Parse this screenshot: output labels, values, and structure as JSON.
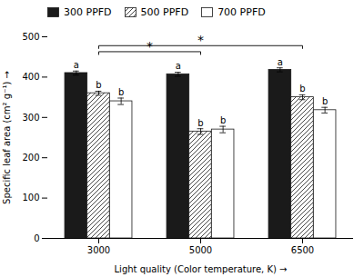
{
  "chart_data": {
    "type": "bar",
    "xlabel": "Light quality (Color temperature, K)",
    "ylabel": "Specific leaf area (cm² g⁻¹)",
    "categories": [
      "3000",
      "5000",
      "6500"
    ],
    "series": [
      {
        "name": "300 PPFD",
        "color": "#1a1a1a",
        "values": [
          410,
          407,
          418
        ],
        "errors": [
          5,
          5,
          5
        ],
        "letter_labels": [
          "a",
          "a",
          "a"
        ]
      },
      {
        "name": "500 PPFD",
        "color": "white",
        "values": [
          360,
          265,
          350
        ],
        "errors": [
          5,
          7,
          6
        ],
        "letter_labels": [
          "b",
          "b",
          "b"
        ]
      },
      {
        "name": "700 PPFD",
        "color": "white",
        "values": [
          340,
          270,
          318
        ],
        "errors": [
          8,
          8,
          7
        ],
        "letter_labels": [
          "b",
          "b",
          "b"
        ]
      }
    ],
    "annotations": [
      {
        "from": "3000",
        "to": "6500",
        "label": "*"
      },
      {
        "from": "3000",
        "to": "5000",
        "label": "*"
      }
    ],
    "ylim": [
      0,
      500
    ],
    "yticks": [
      0,
      100,
      200,
      300,
      400,
      500
    ],
    "grid": false,
    "legend": "upper left"
  }
}
